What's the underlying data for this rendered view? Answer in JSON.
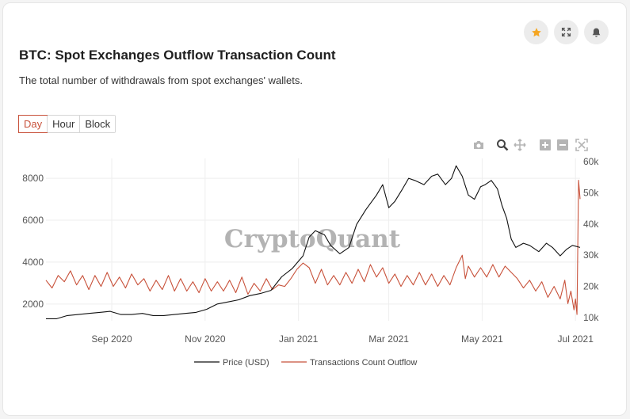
{
  "header": {
    "title": "BTC: Spot Exchanges Outflow Transaction Count",
    "subtitle": "The total number of withdrawals from spot exchanges' wallets.",
    "icons": [
      "star-icon",
      "expand-icon",
      "bell-icon"
    ]
  },
  "tabs": [
    {
      "label": "Day",
      "active": true
    },
    {
      "label": "Hour",
      "active": false
    },
    {
      "label": "Block",
      "active": false
    }
  ],
  "modebar": [
    "camera-icon",
    "zoom-icon",
    "pan-icon",
    "zoom-in-icon",
    "zoom-out-icon",
    "autoscale-icon"
  ],
  "watermark": "CryptoQuant",
  "colors": {
    "price": "#111111",
    "outflow": "#c8523b",
    "accent": "#c8523b",
    "star": "#f5a623"
  },
  "chart_data": {
    "type": "line",
    "x_range": [
      "2020-07-20",
      "2021-07-04"
    ],
    "x_ticks": [
      "Sep 2020",
      "Nov 2020",
      "Jan 2021",
      "Mar 2021",
      "May 2021",
      "Jul 2021"
    ],
    "x_tick_dates": [
      "2020-09-01",
      "2020-11-01",
      "2021-01-01",
      "2021-03-01",
      "2021-05-01",
      "2021-07-01"
    ],
    "y_left": {
      "ticks": [
        "2000",
        "4000",
        "6000",
        "8000"
      ],
      "range": [
        1200,
        8950
      ]
    },
    "y_right": {
      "ticks": [
        "10k",
        "20k",
        "30k",
        "40k",
        "50k",
        "60k"
      ],
      "range": [
        9000,
        61000
      ]
    },
    "grid": true,
    "legend_position": "bottom-center",
    "series": [
      {
        "name": "Price (USD)",
        "axis": "left",
        "points": [
          [
            "2020-07-20",
            1300
          ],
          [
            "2020-07-27",
            1300
          ],
          [
            "2020-08-03",
            1450
          ],
          [
            "2020-08-10",
            1500
          ],
          [
            "2020-08-17",
            1550
          ],
          [
            "2020-08-24",
            1600
          ],
          [
            "2020-08-31",
            1650
          ],
          [
            "2020-09-07",
            1500
          ],
          [
            "2020-09-14",
            1500
          ],
          [
            "2020-09-21",
            1550
          ],
          [
            "2020-09-28",
            1450
          ],
          [
            "2020-10-05",
            1450
          ],
          [
            "2020-10-12",
            1500
          ],
          [
            "2020-10-19",
            1550
          ],
          [
            "2020-10-26",
            1600
          ],
          [
            "2020-11-02",
            1750
          ],
          [
            "2020-11-09",
            2000
          ],
          [
            "2020-11-16",
            2100
          ],
          [
            "2020-11-23",
            2200
          ],
          [
            "2020-11-30",
            2400
          ],
          [
            "2020-12-07",
            2500
          ],
          [
            "2020-12-14",
            2650
          ],
          [
            "2020-12-21",
            3300
          ],
          [
            "2020-12-28",
            3700
          ],
          [
            "2021-01-04",
            4300
          ],
          [
            "2021-01-08",
            5200
          ],
          [
            "2021-01-12",
            5500
          ],
          [
            "2021-01-18",
            5300
          ],
          [
            "2021-01-22",
            4800
          ],
          [
            "2021-01-28",
            4400
          ],
          [
            "2021-02-03",
            4700
          ],
          [
            "2021-02-08",
            5800
          ],
          [
            "2021-02-14",
            6500
          ],
          [
            "2021-02-21",
            7200
          ],
          [
            "2021-02-25",
            7700
          ],
          [
            "2021-03-01",
            6600
          ],
          [
            "2021-03-05",
            6900
          ],
          [
            "2021-03-10",
            7500
          ],
          [
            "2021-03-14",
            8000
          ],
          [
            "2021-03-18",
            7900
          ],
          [
            "2021-03-24",
            7700
          ],
          [
            "2021-03-29",
            8100
          ],
          [
            "2021-04-02",
            8200
          ],
          [
            "2021-04-07",
            7700
          ],
          [
            "2021-04-11",
            8000
          ],
          [
            "2021-04-14",
            8600
          ],
          [
            "2021-04-18",
            8100
          ],
          [
            "2021-04-22",
            7200
          ],
          [
            "2021-04-26",
            7000
          ],
          [
            "2021-04-30",
            7600
          ],
          [
            "2021-05-03",
            7700
          ],
          [
            "2021-05-07",
            7900
          ],
          [
            "2021-05-11",
            7500
          ],
          [
            "2021-05-14",
            6700
          ],
          [
            "2021-05-17",
            6100
          ],
          [
            "2021-05-20",
            5100
          ],
          [
            "2021-05-23",
            4700
          ],
          [
            "2021-05-28",
            4900
          ],
          [
            "2021-06-01",
            4800
          ],
          [
            "2021-06-07",
            4500
          ],
          [
            "2021-06-12",
            4900
          ],
          [
            "2021-06-16",
            4700
          ],
          [
            "2021-06-21",
            4300
          ],
          [
            "2021-06-25",
            4600
          ],
          [
            "2021-06-29",
            4800
          ],
          [
            "2021-07-04",
            4700
          ]
        ]
      },
      {
        "name": "Transactions Count Outflow",
        "axis": "right",
        "points": [
          [
            "2020-07-20",
            22000
          ],
          [
            "2020-07-24",
            19500
          ],
          [
            "2020-07-28",
            23500
          ],
          [
            "2020-08-01",
            21500
          ],
          [
            "2020-08-05",
            25000
          ],
          [
            "2020-08-09",
            20500
          ],
          [
            "2020-08-13",
            23500
          ],
          [
            "2020-08-17",
            19000
          ],
          [
            "2020-08-21",
            23500
          ],
          [
            "2020-08-25",
            20000
          ],
          [
            "2020-08-29",
            24500
          ],
          [
            "2020-09-02",
            20000
          ],
          [
            "2020-09-06",
            23000
          ],
          [
            "2020-09-10",
            19500
          ],
          [
            "2020-09-14",
            24000
          ],
          [
            "2020-09-18",
            20500
          ],
          [
            "2020-09-22",
            22500
          ],
          [
            "2020-09-26",
            18500
          ],
          [
            "2020-09-30",
            22000
          ],
          [
            "2020-10-04",
            19000
          ],
          [
            "2020-10-08",
            23500
          ],
          [
            "2020-10-12",
            18500
          ],
          [
            "2020-10-16",
            22500
          ],
          [
            "2020-10-20",
            18500
          ],
          [
            "2020-10-24",
            21500
          ],
          [
            "2020-10-28",
            18000
          ],
          [
            "2020-11-01",
            22500
          ],
          [
            "2020-11-05",
            18500
          ],
          [
            "2020-11-09",
            21500
          ],
          [
            "2020-11-13",
            18500
          ],
          [
            "2020-11-17",
            22000
          ],
          [
            "2020-11-21",
            18000
          ],
          [
            "2020-11-25",
            23000
          ],
          [
            "2020-11-29",
            17500
          ],
          [
            "2020-12-03",
            21000
          ],
          [
            "2020-12-07",
            18500
          ],
          [
            "2020-12-11",
            22500
          ],
          [
            "2020-12-15",
            19000
          ],
          [
            "2020-12-19",
            20500
          ],
          [
            "2020-12-23",
            20000
          ],
          [
            "2020-12-27",
            22500
          ],
          [
            "2020-12-31",
            25500
          ],
          [
            "2021-01-04",
            27500
          ],
          [
            "2021-01-08",
            26000
          ],
          [
            "2021-01-12",
            21000
          ],
          [
            "2021-01-16",
            25500
          ],
          [
            "2021-01-20",
            20500
          ],
          [
            "2021-01-24",
            23500
          ],
          [
            "2021-01-28",
            20500
          ],
          [
            "2021-02-01",
            24500
          ],
          [
            "2021-02-05",
            21000
          ],
          [
            "2021-02-09",
            25500
          ],
          [
            "2021-02-13",
            21500
          ],
          [
            "2021-02-17",
            27000
          ],
          [
            "2021-02-21",
            23000
          ],
          [
            "2021-02-25",
            26000
          ],
          [
            "2021-03-01",
            21000
          ],
          [
            "2021-03-05",
            24000
          ],
          [
            "2021-03-09",
            20000
          ],
          [
            "2021-03-13",
            23500
          ],
          [
            "2021-03-17",
            20500
          ],
          [
            "2021-03-21",
            24500
          ],
          [
            "2021-03-25",
            20500
          ],
          [
            "2021-03-29",
            24000
          ],
          [
            "2021-04-02",
            20000
          ],
          [
            "2021-04-06",
            23500
          ],
          [
            "2021-04-10",
            20500
          ],
          [
            "2021-04-14",
            26000
          ],
          [
            "2021-04-18",
            30000
          ],
          [
            "2021-04-20",
            22500
          ],
          [
            "2021-04-22",
            26500
          ],
          [
            "2021-04-26",
            23000
          ],
          [
            "2021-04-30",
            26000
          ],
          [
            "2021-05-04",
            23000
          ],
          [
            "2021-05-08",
            27000
          ],
          [
            "2021-05-12",
            23000
          ],
          [
            "2021-05-16",
            26500
          ],
          [
            "2021-05-20",
            24500
          ],
          [
            "2021-05-24",
            22500
          ],
          [
            "2021-05-28",
            19500
          ],
          [
            "2021-06-01",
            22000
          ],
          [
            "2021-06-05",
            18500
          ],
          [
            "2021-06-09",
            21500
          ],
          [
            "2021-06-13",
            16500
          ],
          [
            "2021-06-17",
            20000
          ],
          [
            "2021-06-21",
            16000
          ],
          [
            "2021-06-24",
            22000
          ],
          [
            "2021-06-26",
            14500
          ],
          [
            "2021-06-28",
            18500
          ],
          [
            "2021-06-30",
            12500
          ],
          [
            "2021-07-01",
            16000
          ],
          [
            "2021-07-02",
            11000
          ],
          [
            "2021-07-03",
            54000
          ],
          [
            "2021-07-04",
            48000
          ]
        ]
      }
    ]
  }
}
